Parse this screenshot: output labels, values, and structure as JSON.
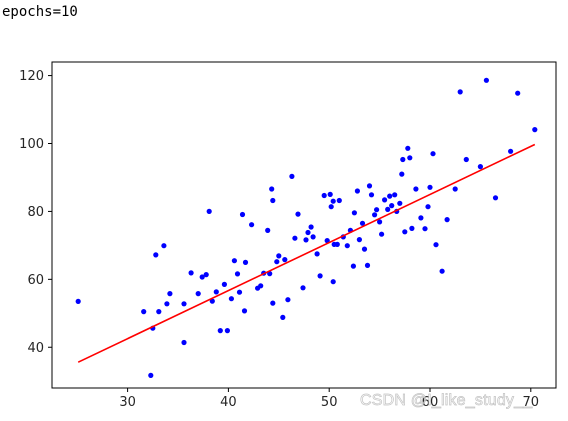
{
  "output_text": "epochs=10",
  "watermark": "CSDN @I_like_study__",
  "colors": {
    "points": "#0000ff",
    "fit_line": "#ff0000",
    "axes": "#000000"
  },
  "chart_data": {
    "type": "scatter",
    "title": "",
    "xlabel": "",
    "ylabel": "",
    "xlim": [
      22.5,
      72.5
    ],
    "ylim": [
      28,
      124
    ],
    "xticks": [
      30,
      40,
      50,
      60,
      70
    ],
    "yticks": [
      40,
      60,
      80,
      100,
      120
    ],
    "grid": false,
    "series": [
      {
        "kind": "scatter",
        "color": "#0000ff",
        "points": [
          [
            25.1,
            53.5
          ],
          [
            31.6,
            50.5
          ],
          [
            32.3,
            31.7
          ],
          [
            32.5,
            45.6
          ],
          [
            32.8,
            67.2
          ],
          [
            33.1,
            50.5
          ],
          [
            33.6,
            69.9
          ],
          [
            33.9,
            52.8
          ],
          [
            34.2,
            55.8
          ],
          [
            35.6,
            52.8
          ],
          [
            35.6,
            41.4
          ],
          [
            36.3,
            61.9
          ],
          [
            37.0,
            55.8
          ],
          [
            37.4,
            60.7
          ],
          [
            37.8,
            61.4
          ],
          [
            38.1,
            80.0
          ],
          [
            38.4,
            53.6
          ],
          [
            38.8,
            56.3
          ],
          [
            39.2,
            44.9
          ],
          [
            39.6,
            58.5
          ],
          [
            39.9,
            44.9
          ],
          [
            40.3,
            54.3
          ],
          [
            40.6,
            65.5
          ],
          [
            40.9,
            61.6
          ],
          [
            41.1,
            56.2
          ],
          [
            41.4,
            79.1
          ],
          [
            41.6,
            50.7
          ],
          [
            41.7,
            65.0
          ],
          [
            42.3,
            76.1
          ],
          [
            42.9,
            57.4
          ],
          [
            43.2,
            58.1
          ],
          [
            43.5,
            61.8
          ],
          [
            43.9,
            74.4
          ],
          [
            44.1,
            61.7
          ],
          [
            44.3,
            86.6
          ],
          [
            44.4,
            83.2
          ],
          [
            44.4,
            53.0
          ],
          [
            44.8,
            65.2
          ],
          [
            45.0,
            66.9
          ],
          [
            45.4,
            48.8
          ],
          [
            45.6,
            65.8
          ],
          [
            45.9,
            54.0
          ],
          [
            46.3,
            90.3
          ],
          [
            46.6,
            72.1
          ],
          [
            46.9,
            79.2
          ],
          [
            47.4,
            57.5
          ],
          [
            47.7,
            71.6
          ],
          [
            47.9,
            73.8
          ],
          [
            48.2,
            75.4
          ],
          [
            48.4,
            72.5
          ],
          [
            48.8,
            67.5
          ],
          [
            49.1,
            61.0
          ],
          [
            49.5,
            84.7
          ],
          [
            49.8,
            71.4
          ],
          [
            50.1,
            85.0
          ],
          [
            50.2,
            81.4
          ],
          [
            50.4,
            59.3
          ],
          [
            50.4,
            83.0
          ],
          [
            50.5,
            70.3
          ],
          [
            50.8,
            70.3
          ],
          [
            51.0,
            83.2
          ],
          [
            51.4,
            72.5
          ],
          [
            51.8,
            69.9
          ],
          [
            52.1,
            74.4
          ],
          [
            52.4,
            63.9
          ],
          [
            52.5,
            79.6
          ],
          [
            52.8,
            86.0
          ],
          [
            53.0,
            71.7
          ],
          [
            53.3,
            76.5
          ],
          [
            53.5,
            68.9
          ],
          [
            53.8,
            64.1
          ],
          [
            54.0,
            87.5
          ],
          [
            54.2,
            84.9
          ],
          [
            54.5,
            79.0
          ],
          [
            54.7,
            80.5
          ],
          [
            55.0,
            76.9
          ],
          [
            55.2,
            73.3
          ],
          [
            55.5,
            83.4
          ],
          [
            55.8,
            80.6
          ],
          [
            56.0,
            84.5
          ],
          [
            56.2,
            81.7
          ],
          [
            56.5,
            84.9
          ],
          [
            56.7,
            80.0
          ],
          [
            57.0,
            82.4
          ],
          [
            57.2,
            91.0
          ],
          [
            57.3,
            95.3
          ],
          [
            57.5,
            74.0
          ],
          [
            57.8,
            98.6
          ],
          [
            58.0,
            95.8
          ],
          [
            58.2,
            75.0
          ],
          [
            58.6,
            86.6
          ],
          [
            59.1,
            78.1
          ],
          [
            59.5,
            74.9
          ],
          [
            59.8,
            81.4
          ],
          [
            60.0,
            87.1
          ],
          [
            60.3,
            97.0
          ],
          [
            60.6,
            70.2
          ],
          [
            61.2,
            62.4
          ],
          [
            61.7,
            77.6
          ],
          [
            62.5,
            86.6
          ],
          [
            63.0,
            115.2
          ],
          [
            63.6,
            95.3
          ],
          [
            65.0,
            93.2
          ],
          [
            65.6,
            118.6
          ],
          [
            66.5,
            84.0
          ],
          [
            68.0,
            97.7
          ],
          [
            68.7,
            114.8
          ],
          [
            70.4,
            104.1
          ]
        ]
      },
      {
        "kind": "line",
        "color": "#ff0000",
        "points": [
          [
            25.1,
            35.6
          ],
          [
            70.4,
            99.7
          ]
        ]
      }
    ]
  }
}
